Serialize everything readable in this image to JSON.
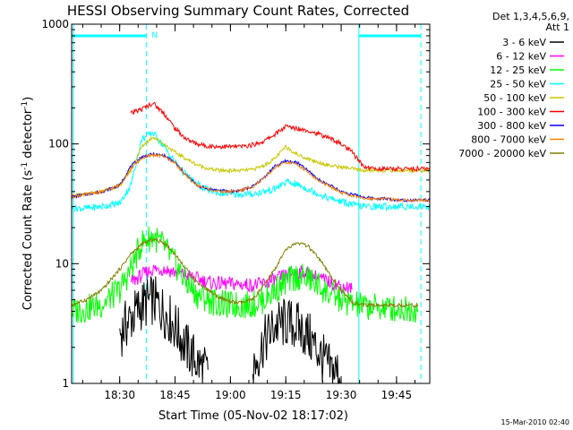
{
  "chart_data": {
    "type": "line",
    "title": "HESSI Observing Summary Count Rates, Corrected",
    "xlabel": "Start Time (05-Nov-02 18:17:02)",
    "ylabel_main": "Corrected Count Rate (s",
    "ylabel_sup1": "-1",
    "ylabel_mid": " detector",
    "ylabel_sup2": "-1",
    "ylabel_end": ")",
    "yscale": "log",
    "ylim": [
      1,
      1000
    ],
    "xlim": [
      18.283,
      19.9
    ],
    "ytick_labels": [
      {
        "label": "1",
        "value": 1
      },
      {
        "label": "10",
        "value": 10
      },
      {
        "label": "100",
        "value": 100
      },
      {
        "label": "1000",
        "value": 1000
      }
    ],
    "xtick_labels": [
      {
        "label": "18:30",
        "value": 18.5
      },
      {
        "label": "18:45",
        "value": 18.75
      },
      {
        "label": "19:00",
        "value": 19.0
      },
      {
        "label": "19:15",
        "value": 19.25
      },
      {
        "label": "19:30",
        "value": 19.5
      },
      {
        "label": "19:45",
        "value": 19.75
      }
    ],
    "legend_header": [
      "Det 1,3,4,5,6,9,",
      "Att 1"
    ],
    "legend_position": "right",
    "annotations": [
      {
        "text": "N",
        "x": 18.62,
        "y": 1000
      }
    ],
    "cyan_bars": [
      {
        "x0": 18.283,
        "x1": 18.62,
        "y": 1000
      },
      {
        "x0": 19.58,
        "x1": 19.86,
        "y": 1000
      }
    ],
    "vertical_lines": [
      {
        "x": 18.62,
        "style": "dashed",
        "color": "#00ffff"
      },
      {
        "x": 19.58,
        "style": "solid",
        "color": "#00ffff"
      },
      {
        "x": 19.86,
        "style": "dashed",
        "color": "#00ffff"
      }
    ],
    "x": [
      18.283,
      18.35,
      18.42,
      18.5,
      18.55,
      18.6,
      18.65,
      18.7,
      18.75,
      18.8,
      18.85,
      18.9,
      18.95,
      19.0,
      19.05,
      19.1,
      19.15,
      19.2,
      19.25,
      19.3,
      19.35,
      19.4,
      19.45,
      19.5,
      19.55,
      19.6,
      19.65,
      19.7,
      19.75,
      19.8,
      19.85,
      19.9
    ],
    "series": [
      {
        "name": "3 - 6 keV",
        "color": "#000000",
        "values": [
          null,
          null,
          null,
          2.6,
          3.5,
          4.5,
          5,
          4,
          3,
          2,
          1.5,
          1.2,
          null,
          null,
          null,
          1.3,
          2.2,
          3,
          3.2,
          3,
          2.5,
          1.8,
          1.3,
          1.2,
          null,
          null,
          null,
          null,
          null,
          null,
          null,
          null
        ]
      },
      {
        "name": "6 - 12 keV",
        "color": "#ff00ff",
        "values": [
          null,
          null,
          null,
          null,
          7,
          8,
          9,
          9,
          8.5,
          8,
          7.5,
          7,
          6.8,
          6.8,
          6.7,
          6.6,
          6.8,
          7.3,
          8,
          8.5,
          8.3,
          7.5,
          7,
          6.5,
          6.2,
          null,
          null,
          null,
          null,
          null,
          null,
          null
        ]
      },
      {
        "name": "12 - 25 keV",
        "color": "#00ff00",
        "values": [
          4,
          4.2,
          4.6,
          6,
          9,
          15,
          17,
          14,
          10,
          7,
          5.5,
          5,
          4.6,
          4.5,
          4.5,
          4.6,
          5,
          6,
          7,
          7.8,
          7.5,
          6.5,
          5.5,
          5,
          4.6,
          4.4,
          4.3,
          4.3,
          4.2,
          4.2,
          4.2,
          null
        ]
      },
      {
        "name": "25 - 50 keV",
        "color": "#00ffff",
        "values": [
          29,
          29,
          30,
          32,
          45,
          110,
          125,
          95,
          70,
          55,
          46,
          41,
          39,
          38,
          38,
          38,
          40,
          42,
          48,
          46,
          42,
          38,
          35,
          33,
          31,
          30,
          30,
          30,
          30,
          30,
          30,
          30
        ]
      },
      {
        "name": "50 - 100 keV",
        "color": "#c8c800",
        "values": [
          37,
          38,
          40,
          45,
          60,
          95,
          115,
          100,
          85,
          75,
          67,
          62,
          60,
          60,
          60,
          61,
          66,
          75,
          95,
          82,
          75,
          70,
          66,
          64,
          62,
          60,
          60,
          60,
          60,
          60,
          60,
          60
        ]
      },
      {
        "name": "100 - 300 keV",
        "color": "#ff0000",
        "values": [
          null,
          null,
          null,
          null,
          180,
          195,
          220,
          180,
          135,
          110,
          100,
          96,
          95,
          95,
          95,
          98,
          105,
          120,
          140,
          135,
          130,
          120,
          112,
          100,
          85,
          65,
          62,
          62,
          62,
          62,
          62,
          62
        ]
      },
      {
        "name": "300 - 800 keV",
        "color": "#0000ff",
        "values": [
          36,
          38,
          40,
          45,
          65,
          78,
          82,
          80,
          70,
          55,
          45,
          42,
          41,
          40,
          41,
          44,
          52,
          65,
          72,
          70,
          60,
          50,
          45,
          40,
          38,
          36,
          35,
          35,
          34,
          34,
          34,
          34
        ]
      },
      {
        "name": "800 - 7000 keV",
        "color": "#ff8000",
        "values": [
          36,
          38,
          40,
          45,
          62,
          76,
          81,
          79,
          69,
          54,
          45,
          42,
          40,
          40,
          41,
          44,
          51,
          63,
          70,
          68,
          58,
          49,
          44,
          39,
          37,
          35,
          35,
          35,
          34,
          34,
          34,
          34
        ]
      },
      {
        "name": "7000 - 20000 keV",
        "color": "#808000",
        "values": [
          4.5,
          5,
          6,
          9,
          12,
          14.5,
          16,
          15,
          12,
          9,
          7,
          6,
          5.2,
          4.8,
          4.7,
          5,
          6.5,
          9,
          13,
          15,
          14,
          11,
          8,
          6,
          4.8,
          4.5,
          4.5,
          4.5,
          4.5,
          4.5,
          4.5,
          null
        ]
      }
    ]
  },
  "footer_timestamp": "15-Mar-2010 02:40"
}
